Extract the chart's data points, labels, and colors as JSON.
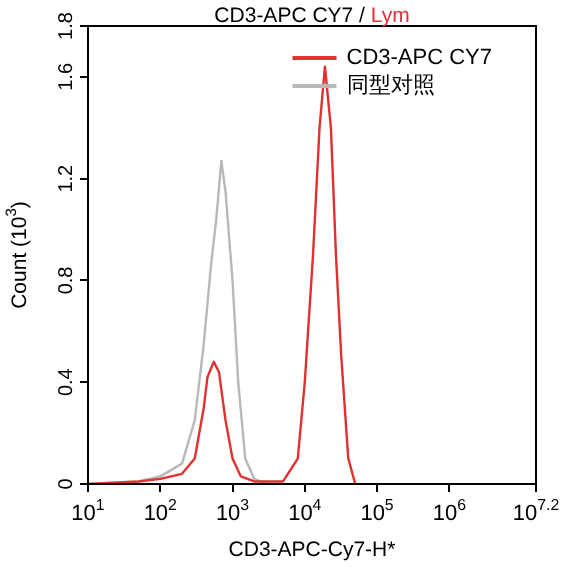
{
  "chart_data": {
    "type": "line",
    "title": "CD3-APC CY7 / Lym",
    "xlabel": "CD3-APC-Cy7-H*",
    "ylabel": "Count (10$^{3}$)",
    "log": "x",
    "xlim": [
      10,
      15848932
    ],
    "xticks": [
      {
        "value": 10,
        "label": "10$^{1}$"
      },
      {
        "value": 100,
        "label": "10$^{2}$"
      },
      {
        "value": 1000,
        "label": "10$^{3}$"
      },
      {
        "value": 10000,
        "label": "10$^{4}$"
      },
      {
        "value": 100000,
        "label": "10$^{5}$"
      },
      {
        "value": 1000000,
        "label": "10$^{6}$"
      },
      {
        "value": 15848932,
        "label": "10$^{7.2}$"
      }
    ],
    "ylim": [
      0,
      1.8
    ],
    "yticks": [
      0,
      0.4,
      0.8,
      1.2,
      1.6,
      1.8
    ],
    "legend": "top right",
    "marker": "none",
    "series": [
      {
        "name": "CD3-APC CY7",
        "color": "#e03030",
        "x": [
          10,
          50,
          100,
          200,
          300,
          400,
          450,
          550,
          650,
          800,
          1000,
          1300,
          2000,
          5000,
          8000,
          10000,
          13000,
          16000,
          19000,
          23000,
          27000,
          32000,
          40000,
          50000
        ],
        "values": [
          0,
          0.01,
          0.02,
          0.04,
          0.1,
          0.3,
          0.42,
          0.48,
          0.44,
          0.25,
          0.1,
          0.03,
          0.01,
          0.01,
          0.1,
          0.4,
          0.9,
          1.4,
          1.64,
          1.4,
          0.9,
          0.5,
          0.1,
          0
        ]
      },
      {
        "name": "同型对照",
        "color": "#b8b8b8",
        "x": [
          10,
          50,
          100,
          200,
          300,
          400,
          500,
          600,
          700,
          800,
          1000,
          1200,
          1500,
          2000,
          3000
        ],
        "values": [
          0,
          0.01,
          0.03,
          0.08,
          0.25,
          0.55,
          0.85,
          1.05,
          1.27,
          1.15,
          0.8,
          0.4,
          0.1,
          0.02,
          0
        ]
      }
    ]
  }
}
